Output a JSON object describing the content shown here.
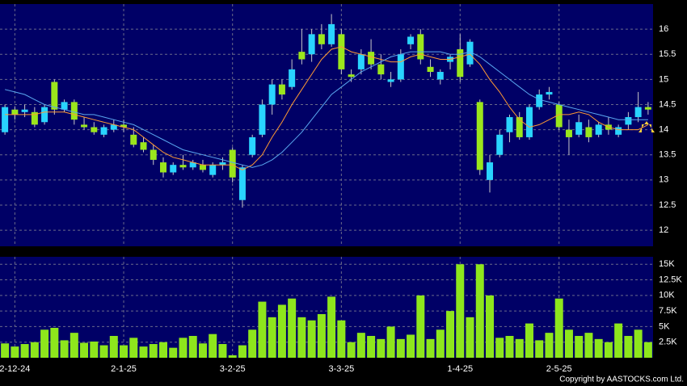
{
  "chart_data": [
    {
      "type": "candlestick",
      "open": [
        13.95,
        14.4,
        14.35,
        14.35,
        14.15,
        14.95,
        14.4,
        14.55,
        14.1,
        14.05,
        13.9,
        14.0,
        14.1,
        13.9,
        13.75,
        13.6,
        13.35,
        13.15,
        13.3,
        13.25,
        13.3,
        13.1,
        13.3,
        13.6,
        12.6,
        13.5,
        13.9,
        14.5,
        14.9,
        14.85,
        15.55,
        15.5,
        15.9,
        15.7,
        15.9,
        15.1,
        15.2,
        15.55,
        15.3,
        14.95,
        15.0,
        15.7,
        15.9,
        15.25,
        15.0,
        15.35,
        15.6,
        15.3,
        14.55,
        13.0,
        13.5,
        13.95,
        14.25,
        13.85,
        14.45,
        14.7,
        14.5,
        14.0,
        13.9,
        14.05,
        13.9,
        14.1,
        13.9,
        14.1,
        14.25,
        14.45
      ],
      "high": [
        14.5,
        14.45,
        14.5,
        14.45,
        14.5,
        15.0,
        14.6,
        14.6,
        14.25,
        14.15,
        14.1,
        14.2,
        14.2,
        14.05,
        13.85,
        13.7,
        13.45,
        13.35,
        13.5,
        13.4,
        13.4,
        13.35,
        13.45,
        13.65,
        13.3,
        13.9,
        14.6,
        15.0,
        15.0,
        15.4,
        16.0,
        16.0,
        16.1,
        16.3,
        16.0,
        15.2,
        15.6,
        15.8,
        15.5,
        15.15,
        15.6,
        15.9,
        16.0,
        15.4,
        15.2,
        15.5,
        15.9,
        15.8,
        14.6,
        13.5,
        14.0,
        14.3,
        14.35,
        14.5,
        14.8,
        14.85,
        14.55,
        14.2,
        14.3,
        14.2,
        14.15,
        14.25,
        14.1,
        14.35,
        14.75,
        14.55
      ],
      "low": [
        13.9,
        14.2,
        14.25,
        14.05,
        14.1,
        14.3,
        14.35,
        14.1,
        14.0,
        13.9,
        13.85,
        13.95,
        13.95,
        13.65,
        13.55,
        13.3,
        13.05,
        13.1,
        13.2,
        13.2,
        13.15,
        13.05,
        13.2,
        12.95,
        12.45,
        13.45,
        13.85,
        14.3,
        14.6,
        14.8,
        15.3,
        15.35,
        15.6,
        15.65,
        15.1,
        14.95,
        15.1,
        15.2,
        15.0,
        14.85,
        14.95,
        15.6,
        15.3,
        15.05,
        14.9,
        15.2,
        14.95,
        15.25,
        13.1,
        12.75,
        13.45,
        13.75,
        13.8,
        13.8,
        14.4,
        14.6,
        14.0,
        13.5,
        13.85,
        13.75,
        13.85,
        13.9,
        13.85,
        14.0,
        14.15,
        14.3
      ],
      "close": [
        14.45,
        14.3,
        14.4,
        14.1,
        14.45,
        14.4,
        14.55,
        14.2,
        14.05,
        13.95,
        14.05,
        14.1,
        14.05,
        13.7,
        13.6,
        13.4,
        13.15,
        13.3,
        13.25,
        13.35,
        13.2,
        13.3,
        13.35,
        13.05,
        13.25,
        13.85,
        14.5,
        14.9,
        14.7,
        15.2,
        15.4,
        15.9,
        15.7,
        16.1,
        15.2,
        15.05,
        15.5,
        15.3,
        15.1,
        15.0,
        15.5,
        15.85,
        15.4,
        15.15,
        15.15,
        15.45,
        15.05,
        15.75,
        13.2,
        13.35,
        13.9,
        14.25,
        13.85,
        14.45,
        14.7,
        14.75,
        14.05,
        13.85,
        14.15,
        13.85,
        14.1,
        14.0,
        14.05,
        14.25,
        14.45,
        14.4
      ],
      "up_color": "#29d4ff",
      "down_color": "#9be61c",
      "lines": [
        {
          "color": "#ff9a33",
          "values": [
            14.3,
            14.3,
            14.3,
            14.3,
            14.35,
            14.35,
            14.35,
            14.3,
            14.25,
            14.2,
            14.15,
            14.1,
            14.05,
            14.0,
            13.85,
            13.7,
            13.55,
            13.45,
            13.4,
            13.35,
            13.3,
            13.3,
            13.3,
            13.3,
            13.2,
            13.3,
            13.5,
            13.85,
            14.15,
            14.5,
            14.8,
            15.1,
            15.4,
            15.6,
            15.65,
            15.55,
            15.5,
            15.45,
            15.4,
            15.35,
            15.35,
            15.45,
            15.5,
            15.45,
            15.4,
            15.4,
            15.45,
            15.5,
            15.3,
            15.0,
            14.75,
            14.45,
            14.2,
            14.05,
            14.1,
            14.2,
            14.3,
            14.3,
            14.35,
            14.3,
            14.15,
            14.05,
            14.0,
            14.0,
            14.0,
            14.1
          ]
        },
        {
          "color": "#5aa8f0",
          "values": [
            14.8,
            14.75,
            14.7,
            14.6,
            14.5,
            14.45,
            14.4,
            14.35,
            14.3,
            14.3,
            14.25,
            14.2,
            14.15,
            14.1,
            14.0,
            13.9,
            13.8,
            13.7,
            13.6,
            13.55,
            13.5,
            13.45,
            13.4,
            13.35,
            13.3,
            13.25,
            13.3,
            13.4,
            13.55,
            13.75,
            13.95,
            14.2,
            14.45,
            14.7,
            14.85,
            15.0,
            15.15,
            15.25,
            15.35,
            15.45,
            15.5,
            15.55,
            15.55,
            15.55,
            15.55,
            15.5,
            15.5,
            15.55,
            15.45,
            15.3,
            15.15,
            15.0,
            14.85,
            14.7,
            14.6,
            14.55,
            14.5,
            14.45,
            14.4,
            14.35,
            14.3,
            14.25,
            14.2,
            14.2,
            14.2,
            14.2
          ]
        }
      ],
      "ylim": [
        11.68,
        16.5
      ],
      "yticks": [
        12,
        12.5,
        13,
        13.5,
        14,
        14.5,
        15,
        15.5,
        16
      ],
      "grid": true
    },
    {
      "type": "bar",
      "categories": [
        null,
        "2-12-24",
        null,
        null,
        null,
        null,
        null,
        null,
        null,
        null,
        null,
        null,
        "2-1-25",
        null,
        null,
        null,
        null,
        null,
        null,
        null,
        null,
        null,
        null,
        "3-2-25",
        null,
        null,
        null,
        null,
        null,
        null,
        null,
        null,
        null,
        null,
        "3-3-25",
        null,
        null,
        null,
        null,
        null,
        null,
        null,
        null,
        null,
        null,
        null,
        "1-4-25",
        null,
        null,
        null,
        null,
        null,
        null,
        null,
        null,
        null,
        "2-5-25",
        null,
        null,
        null,
        null,
        null,
        null,
        null,
        null,
        null
      ],
      "values": [
        2300,
        1800,
        2200,
        2500,
        4500,
        4800,
        2800,
        4000,
        2400,
        2600,
        2000,
        3500,
        2000,
        3200,
        1800,
        2200,
        2500,
        1600,
        3200,
        3500,
        2300,
        3800,
        2200,
        400,
        2000,
        4500,
        9000,
        6500,
        8500,
        9500,
        6500,
        6000,
        7000,
        9800,
        6000,
        2500,
        4000,
        3500,
        3000,
        5000,
        3000,
        3700,
        10000,
        3000,
        4500,
        7500,
        15000,
        6500,
        15000,
        10000,
        3200,
        3500,
        3000,
        5500,
        2800,
        4000,
        9500,
        4500,
        3500,
        4000,
        3000,
        2500,
        5500,
        3500,
        4500,
        2500
      ],
      "color": "#8ee61c",
      "ylim": [
        0,
        16200
      ],
      "yticks": [
        {
          "value": 2500,
          "label": "2.5K"
        },
        {
          "value": 5000,
          "label": "5K"
        },
        {
          "value": 7500,
          "label": "7.5K"
        },
        {
          "value": 10000,
          "label": "10K"
        },
        {
          "value": 12500,
          "label": "12.5K"
        },
        {
          "value": 15000,
          "label": "15K"
        }
      ],
      "grid": true
    }
  ],
  "footer": "Copyright by AASTOCKS.com Ltd."
}
